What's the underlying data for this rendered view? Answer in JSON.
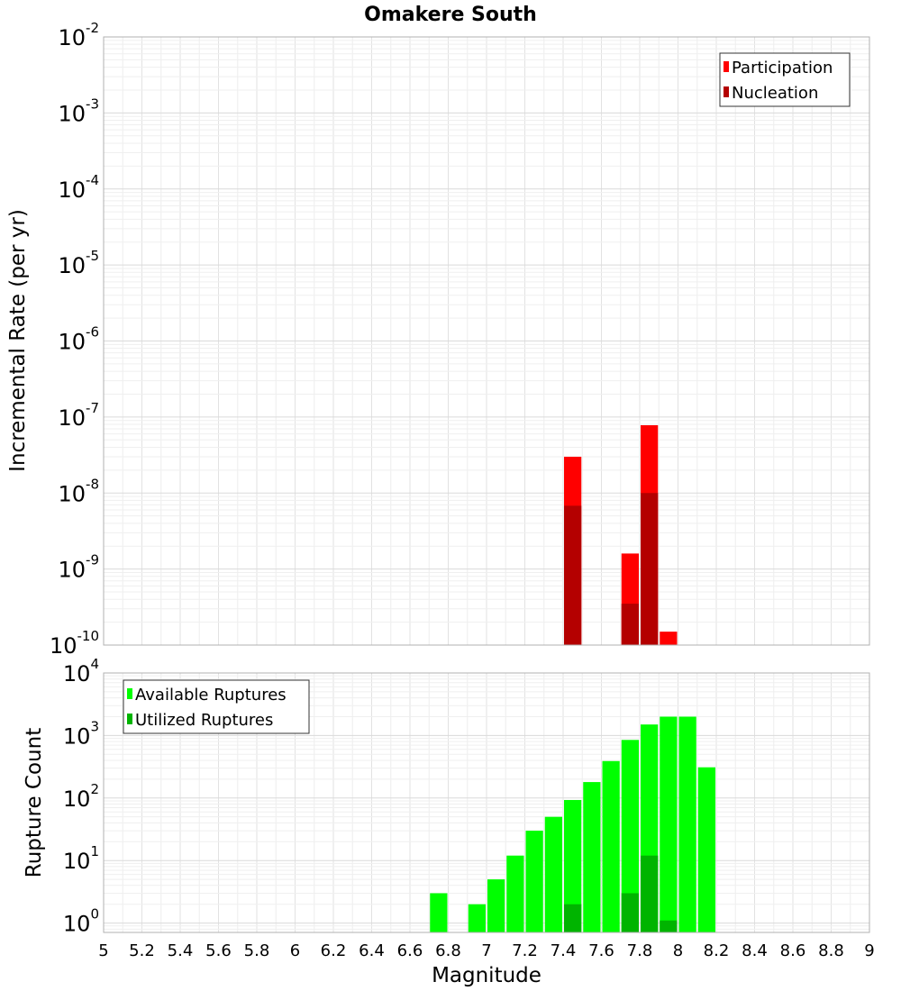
{
  "chart_data": {
    "type": "bar",
    "title": "Omakere South",
    "xlabel": "Magnitude",
    "xlim": [
      5,
      9
    ],
    "xticks": [
      "5",
      "5.2",
      "5.4",
      "5.6",
      "5.8",
      "6",
      "6.2",
      "6.4",
      "6.6",
      "6.8",
      "7",
      "7.2",
      "7.4",
      "7.6",
      "7.8",
      "8",
      "8.2",
      "8.4",
      "8.6",
      "8.8",
      "9"
    ],
    "bar_width": 0.1,
    "panels": [
      {
        "id": "rate",
        "ylabel": "Incremental Rate (per yr)",
        "yscale": "log",
        "ylim_exp": [
          -10,
          -2
        ],
        "ytick_exps": [
          "-10",
          "-9",
          "-8",
          "-7",
          "-6",
          "-5",
          "-4",
          "-3",
          "-2"
        ],
        "legend_position": "top-right",
        "series": [
          {
            "name": "Participation",
            "color": "#ff0000",
            "points": [
              {
                "x": 7.45,
                "y": 3e-08
              },
              {
                "x": 7.75,
                "y": 1.6e-09
              },
              {
                "x": 7.85,
                "y": 7.8e-08
              },
              {
                "x": 7.95,
                "y": 1.5e-10
              }
            ]
          },
          {
            "name": "Nucleation",
            "color": "#b40000",
            "points": [
              {
                "x": 7.45,
                "y": 6.8e-09
              },
              {
                "x": 7.75,
                "y": 3.5e-10
              },
              {
                "x": 7.85,
                "y": 1e-08
              }
            ]
          }
        ]
      },
      {
        "id": "count",
        "ylabel": "Rupture Count",
        "yscale": "log",
        "ylim_exp": [
          -0.15,
          4
        ],
        "ytick_exps": [
          "0",
          "1",
          "2",
          "3",
          "4"
        ],
        "legend_position": "top-left",
        "series": [
          {
            "name": "Available Ruptures",
            "color": "#00ff00",
            "points": [
              {
                "x": 6.75,
                "y": 3
              },
              {
                "x": 6.95,
                "y": 2
              },
              {
                "x": 7.05,
                "y": 5
              },
              {
                "x": 7.15,
                "y": 12
              },
              {
                "x": 7.25,
                "y": 30
              },
              {
                "x": 7.35,
                "y": 50
              },
              {
                "x": 7.45,
                "y": 93
              },
              {
                "x": 7.55,
                "y": 180
              },
              {
                "x": 7.65,
                "y": 390
              },
              {
                "x": 7.75,
                "y": 850
              },
              {
                "x": 7.85,
                "y": 1500
              },
              {
                "x": 7.95,
                "y": 2000
              },
              {
                "x": 8.05,
                "y": 2000
              },
              {
                "x": 8.15,
                "y": 310
              }
            ]
          },
          {
            "name": "Utilized Ruptures",
            "color": "#00b400",
            "points": [
              {
                "x": 7.45,
                "y": 2
              },
              {
                "x": 7.75,
                "y": 3
              },
              {
                "x": 7.85,
                "y": 12
              },
              {
                "x": 7.95,
                "y": 1.1
              }
            ]
          }
        ]
      }
    ]
  }
}
